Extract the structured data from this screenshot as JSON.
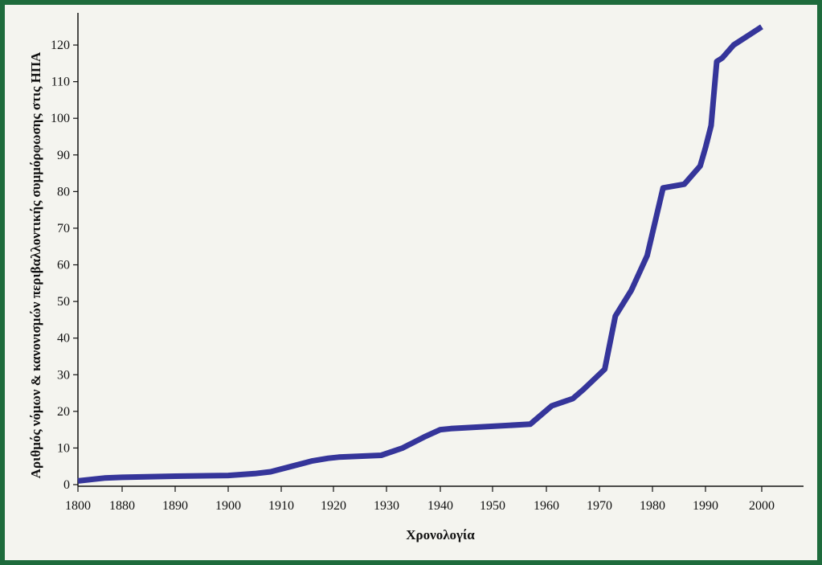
{
  "chart_data": {
    "type": "line",
    "title": "",
    "xlabel": "Χρονολογία",
    "ylabel": "Αριθμός νόμων & κανονισμών περιβαλλοντικής συμμόρφωσης στις ΗΠΑ",
    "x_tick_labels": [
      "1800",
      "1880",
      "1890",
      "1900",
      "1910",
      "1920",
      "1930",
      "1940",
      "1950",
      "1960",
      "1970",
      "1980",
      "1990",
      "2000"
    ],
    "y_ticks": [
      0,
      10,
      20,
      30,
      40,
      50,
      60,
      70,
      80,
      90,
      100,
      110,
      120
    ],
    "ylim": [
      0,
      125
    ],
    "grid": false,
    "line_color": "#35359a",
    "series": [
      {
        "x": [
          1870,
          1876,
          1880,
          1890,
          1900,
          1905,
          1908,
          1912,
          1916,
          1919,
          1921,
          1929,
          1933,
          1937,
          1940,
          1942,
          1957,
          1961,
          1963,
          1965,
          1967,
          1971,
          1973,
          1976,
          1979,
          1982,
          1986,
          1989,
          1990,
          1991,
          1992,
          1993,
          1995,
          1998,
          2000
        ],
        "y": [
          1,
          1.8,
          2,
          2.3,
          2.5,
          3,
          3.5,
          5,
          6.5,
          7.2,
          7.5,
          8,
          10,
          13,
          15,
          15.3,
          16.5,
          21.5,
          22.5,
          23.5,
          26,
          31.5,
          46,
          53,
          62.5,
          81,
          82,
          87,
          92,
          98,
          115.5,
          116.5,
          120,
          123,
          125
        ]
      }
    ]
  }
}
